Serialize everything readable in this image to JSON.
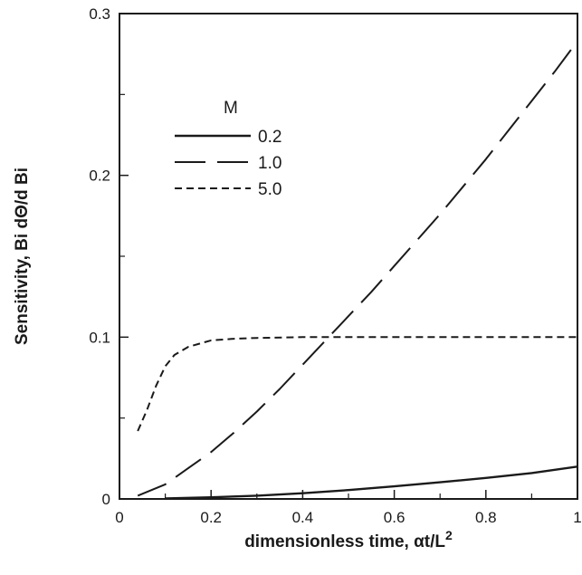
{
  "chart_data": {
    "type": "line",
    "title": "",
    "xlabel": "dimensionless time, αt/L",
    "xlabel_superscript": "2",
    "ylabel": "Sensitivity, Bi dΘ/d Bi",
    "xlim": [
      0,
      1
    ],
    "ylim": [
      0,
      0.3
    ],
    "xticks": [
      "0",
      "0.2",
      "0.4",
      "0.6",
      "0.8",
      "1"
    ],
    "yticks": [
      "0",
      "0.1",
      "0.2",
      "0.3"
    ],
    "grid": false,
    "legend": {
      "title": "M",
      "placement": "top-left",
      "entries": [
        "0.2",
        "1.0",
        "5.0"
      ]
    },
    "series": [
      {
        "name": "0.2",
        "style": "solid",
        "x": [
          0.1,
          0.2,
          0.3,
          0.4,
          0.5,
          0.6,
          0.7,
          0.8,
          0.9,
          1.0
        ],
        "y": [
          0.0003,
          0.001,
          0.002,
          0.0035,
          0.0055,
          0.0078,
          0.0103,
          0.013,
          0.016,
          0.02
        ]
      },
      {
        "name": "1.0",
        "style": "long-dash",
        "x": [
          0.04,
          0.1,
          0.15,
          0.2,
          0.25,
          0.3,
          0.35,
          0.4,
          0.45,
          0.5,
          0.55,
          0.6,
          0.65,
          0.7,
          0.75,
          0.8,
          0.85,
          0.9,
          0.95,
          1.0
        ],
        "y": [
          0.002,
          0.009,
          0.019,
          0.029,
          0.041,
          0.054,
          0.068,
          0.083,
          0.098,
          0.113,
          0.128,
          0.144,
          0.16,
          0.176,
          0.193,
          0.21,
          0.228,
          0.246,
          0.264,
          0.283
        ]
      },
      {
        "name": "5.0",
        "style": "short-dash",
        "x": [
          0.04,
          0.06,
          0.08,
          0.1,
          0.12,
          0.15,
          0.2,
          0.25,
          0.3,
          0.4,
          0.5,
          0.6,
          0.7,
          0.8,
          0.9,
          1.0
        ],
        "y": [
          0.042,
          0.055,
          0.07,
          0.082,
          0.089,
          0.094,
          0.098,
          0.099,
          0.0995,
          0.1,
          0.1,
          0.1,
          0.1,
          0.1,
          0.1,
          0.1
        ]
      }
    ]
  }
}
